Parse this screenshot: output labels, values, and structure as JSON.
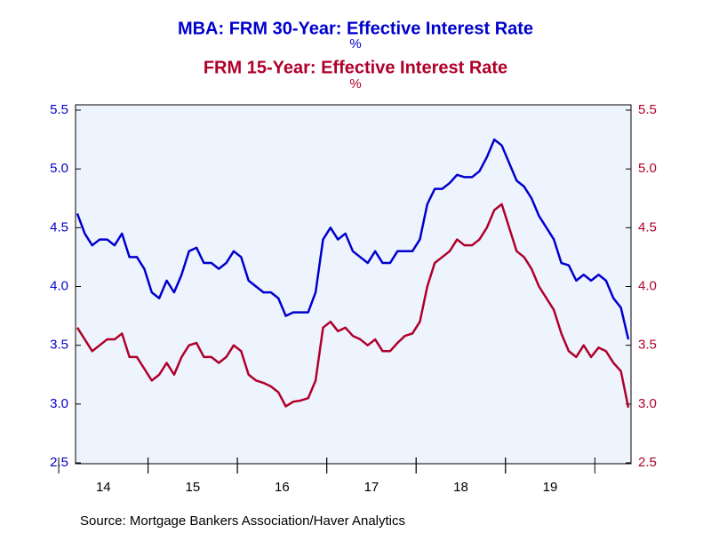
{
  "chart_data": {
    "type": "line",
    "title": "MBA: FRM 30-Year: Effective Interest Rate",
    "title_unit": "%",
    "title2": "FRM 15-Year: Effective Interest Rate",
    "title2_unit": "%",
    "source": "Source:  Mortgage Bankers Association/Haver Analytics",
    "categories": [
      null,
      null,
      null,
      null,
      "14",
      null,
      null,
      null,
      null,
      null,
      null,
      null,
      null,
      null,
      null,
      null,
      "15",
      null,
      null,
      null,
      null,
      null,
      null,
      null,
      null,
      null,
      null,
      null,
      "16",
      null,
      null,
      null,
      null,
      null,
      null,
      null,
      null,
      null,
      null,
      null,
      "17",
      null,
      null,
      null,
      null,
      null,
      null,
      null,
      null,
      null,
      null,
      null,
      "18",
      null,
      null,
      null,
      null,
      null,
      null,
      null,
      null,
      null,
      null,
      null,
      "19",
      null,
      null,
      null,
      null,
      null,
      null,
      null,
      null,
      null,
      null
    ],
    "series": [
      {
        "name": "MBA: FRM 30-Year: Effective Interest Rate",
        "color": "#0000cc",
        "values": [
          4.62,
          4.45,
          4.35,
          4.4,
          4.4,
          4.35,
          4.45,
          4.25,
          4.25,
          4.15,
          3.95,
          3.9,
          4.05,
          3.95,
          4.1,
          4.3,
          4.33,
          4.2,
          4.2,
          4.15,
          4.2,
          4.3,
          4.25,
          4.05,
          4.0,
          3.95,
          3.95,
          3.9,
          3.75,
          3.78,
          3.78,
          3.78,
          3.95,
          4.4,
          4.5,
          4.4,
          4.45,
          4.3,
          4.25,
          4.2,
          4.3,
          4.2,
          4.2,
          4.3,
          4.3,
          4.3,
          4.4,
          4.7,
          4.83,
          4.83,
          4.88,
          4.95,
          4.93,
          4.93,
          4.98,
          5.1,
          5.25,
          5.2,
          5.05,
          4.9,
          4.85,
          4.75,
          4.6,
          4.5,
          4.4,
          4.2,
          4.18,
          4.05,
          4.1,
          4.05,
          4.1,
          4.05,
          3.9,
          3.82,
          3.55
        ]
      },
      {
        "name": "FRM 15-Year: Effective Interest Rate",
        "color": "#b0002a",
        "axis": "y2",
        "values": [
          3.65,
          3.55,
          3.45,
          3.5,
          3.55,
          3.55,
          3.6,
          3.4,
          3.4,
          3.3,
          3.2,
          3.25,
          3.35,
          3.25,
          3.4,
          3.5,
          3.52,
          3.4,
          3.4,
          3.35,
          3.4,
          3.5,
          3.45,
          3.25,
          3.2,
          3.18,
          3.15,
          3.1,
          2.98,
          3.02,
          3.03,
          3.05,
          3.2,
          3.65,
          3.7,
          3.62,
          3.65,
          3.58,
          3.55,
          3.5,
          3.55,
          3.45,
          3.45,
          3.52,
          3.58,
          3.6,
          3.7,
          4.0,
          4.2,
          4.25,
          4.3,
          4.4,
          4.35,
          4.35,
          4.4,
          4.5,
          4.65,
          4.7,
          4.5,
          4.3,
          4.25,
          4.15,
          4.0,
          3.9,
          3.8,
          3.6,
          3.45,
          3.4,
          3.5,
          3.4,
          3.48,
          3.45,
          3.35,
          3.28,
          2.97
        ]
      }
    ],
    "ylim": [
      2.5,
      5.5
    ],
    "yticks": [
      {
        "value": 2.5,
        "label": "2.5"
      },
      {
        "value": 3,
        "label": "3.0"
      },
      {
        "value": 3.5,
        "label": "3.5"
      },
      {
        "value": 4,
        "label": "4.0"
      },
      {
        "value": 4.5,
        "label": "4.5"
      },
      {
        "value": 5,
        "label": "5.0"
      },
      {
        "value": 5.5,
        "label": "5.5"
      }
    ],
    "y2lim": [
      2.5,
      5.5
    ],
    "y2ticks": [
      {
        "value": 2.5,
        "label": "2.5"
      },
      {
        "value": 3,
        "label": "3.0"
      },
      {
        "value": 3.5,
        "label": "3.5"
      },
      {
        "value": 4,
        "label": "4.0"
      },
      {
        "value": 4.5,
        "label": "4.5"
      },
      {
        "value": 5,
        "label": "5.0"
      },
      {
        "value": 5.5,
        "label": "5.5"
      }
    ],
    "grid": false
  }
}
